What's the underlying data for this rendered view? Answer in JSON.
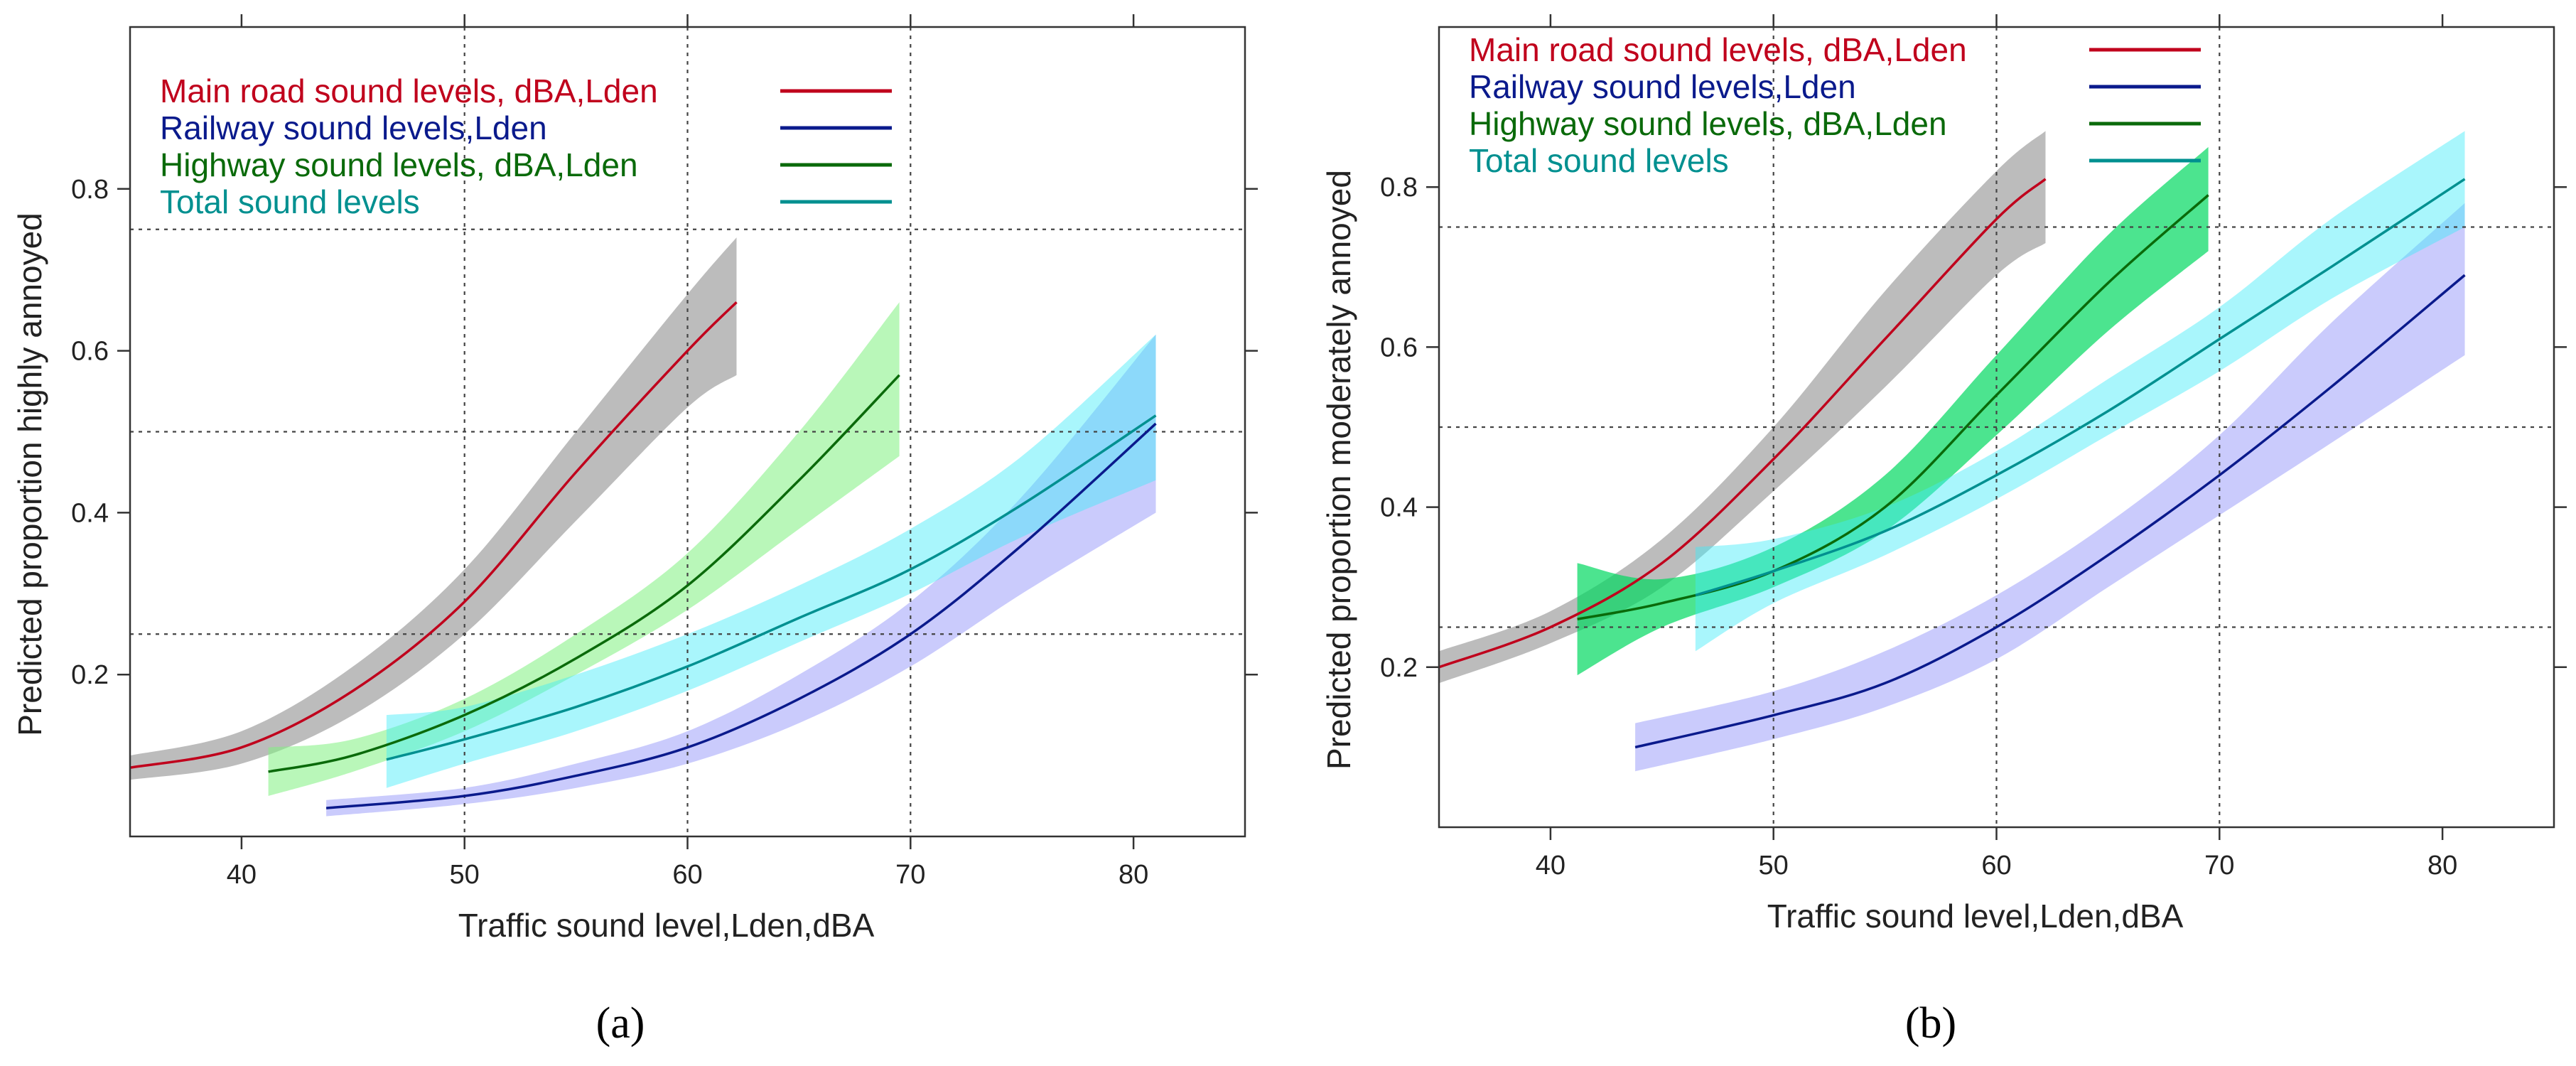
{
  "chart_data": [
    {
      "type": "line",
      "panel_label": "(a)",
      "xlabel": "Traffic sound level,Lden,dBA",
      "ylabel": "Predicted proportion highly annoyed",
      "xlim": [
        35,
        85
      ],
      "ylim": [
        0,
        1
      ],
      "xticks": [
        40,
        50,
        60,
        70,
        80
      ],
      "yticks": [
        0.2,
        0.4,
        0.6,
        0.8
      ],
      "vlines": [
        50,
        60,
        70
      ],
      "hlines": [
        0.25,
        0.5,
        0.75
      ],
      "legend_position": "top-left",
      "series": [
        {
          "name": "Main road sound levels, dBA,Lden",
          "color": "#c0001c",
          "band_color": "#909090",
          "band_opacity": 0.6,
          "x": [
            35,
            40,
            45,
            50,
            55,
            60,
            62.2
          ],
          "y": [
            0.085,
            0.11,
            0.18,
            0.29,
            0.45,
            0.6,
            0.66
          ],
          "lower": [
            0.07,
            0.09,
            0.15,
            0.25,
            0.39,
            0.53,
            0.57
          ],
          "upper": [
            0.1,
            0.13,
            0.21,
            0.33,
            0.5,
            0.67,
            0.74
          ]
        },
        {
          "name": "Railway sound levels,Lden",
          "color": "#0a1a8c",
          "band_color": "#8a8cf8",
          "band_opacity": 0.45,
          "x": [
            43.8,
            50,
            55,
            60,
            65,
            70,
            75,
            81
          ],
          "y": [
            0.035,
            0.05,
            0.075,
            0.11,
            0.17,
            0.25,
            0.36,
            0.51
          ],
          "lower": [
            0.025,
            0.04,
            0.06,
            0.09,
            0.14,
            0.21,
            0.3,
            0.4
          ],
          "upper": [
            0.045,
            0.06,
            0.09,
            0.13,
            0.2,
            0.29,
            0.42,
            0.62
          ]
        },
        {
          "name": "Highway sound levels, dBA,Lden",
          "color": "#0a6a0a",
          "band_color": "#7ff07f",
          "band_opacity": 0.55,
          "x": [
            41.2,
            45,
            50,
            55,
            60,
            65,
            69.5
          ],
          "y": [
            0.08,
            0.1,
            0.15,
            0.22,
            0.31,
            0.44,
            0.57
          ],
          "lower": [
            0.05,
            0.08,
            0.13,
            0.2,
            0.28,
            0.38,
            0.47
          ],
          "upper": [
            0.11,
            0.12,
            0.17,
            0.25,
            0.35,
            0.5,
            0.66
          ]
        },
        {
          "name": "Total sound levels",
          "color": "#009090",
          "band_color": "#40ecf8",
          "band_opacity": 0.45,
          "x": [
            46.5,
            50,
            55,
            60,
            65,
            70,
            75,
            81
          ],
          "y": [
            0.095,
            0.12,
            0.16,
            0.21,
            0.27,
            0.33,
            0.41,
            0.52
          ],
          "lower": [
            0.06,
            0.09,
            0.13,
            0.18,
            0.24,
            0.3,
            0.37,
            0.44
          ],
          "upper": [
            0.15,
            0.16,
            0.2,
            0.25,
            0.31,
            0.38,
            0.47,
            0.62
          ]
        }
      ]
    },
    {
      "type": "line",
      "panel_label": "(b)",
      "xlabel": "Traffic sound level,Lden,dBA",
      "ylabel": "Predicted proportion moderately annoyed",
      "xlim": [
        35,
        85
      ],
      "ylim": [
        0,
        1
      ],
      "xticks": [
        40,
        50,
        60,
        70,
        80
      ],
      "yticks": [
        0.2,
        0.4,
        0.6,
        0.8
      ],
      "vlines": [
        50,
        60,
        70
      ],
      "hlines": [
        0.25,
        0.5,
        0.75
      ],
      "legend_position": "top-left",
      "series": [
        {
          "name": "Main road sound levels, dBA,Lden",
          "color": "#c0001c",
          "band_color": "#909090",
          "band_opacity": 0.6,
          "x": [
            35,
            40,
            45,
            50,
            55,
            60,
            62.2
          ],
          "y": [
            0.2,
            0.25,
            0.33,
            0.46,
            0.61,
            0.76,
            0.81
          ],
          "lower": [
            0.18,
            0.23,
            0.3,
            0.42,
            0.55,
            0.69,
            0.73
          ],
          "upper": [
            0.22,
            0.27,
            0.36,
            0.5,
            0.67,
            0.82,
            0.87
          ]
        },
        {
          "name": "Railway sound levels,Lden",
          "color": "#0a1a8c",
          "band_color": "#8a8cf8",
          "band_opacity": 0.45,
          "x": [
            43.8,
            50,
            55,
            60,
            65,
            70,
            75,
            81
          ],
          "y": [
            0.1,
            0.14,
            0.18,
            0.25,
            0.34,
            0.44,
            0.55,
            0.69
          ],
          "lower": [
            0.07,
            0.11,
            0.15,
            0.21,
            0.3,
            0.39,
            0.48,
            0.59
          ],
          "upper": [
            0.13,
            0.17,
            0.22,
            0.29,
            0.38,
            0.49,
            0.63,
            0.78
          ]
        },
        {
          "name": "Highway sound levels, dBA,Lden",
          "color": "#0a6a0a",
          "band_color": "#00d860",
          "band_opacity": 0.7,
          "x": [
            41.2,
            45,
            50,
            55,
            60,
            65,
            69.5
          ],
          "y": [
            0.26,
            0.28,
            0.32,
            0.4,
            0.54,
            0.68,
            0.79
          ],
          "lower": [
            0.19,
            0.25,
            0.3,
            0.37,
            0.49,
            0.62,
            0.72
          ],
          "upper": [
            0.33,
            0.31,
            0.35,
            0.44,
            0.59,
            0.74,
            0.85
          ]
        },
        {
          "name": "Total sound levels",
          "color": "#009090",
          "band_color": "#40ecf8",
          "band_opacity": 0.45,
          "x": [
            46.5,
            50,
            55,
            60,
            65,
            70,
            75,
            81
          ],
          "y": [
            0.29,
            0.32,
            0.37,
            0.44,
            0.52,
            0.61,
            0.7,
            0.81
          ],
          "lower": [
            0.22,
            0.28,
            0.34,
            0.41,
            0.49,
            0.57,
            0.66,
            0.75
          ],
          "upper": [
            0.35,
            0.36,
            0.4,
            0.47,
            0.56,
            0.65,
            0.76,
            0.87
          ]
        }
      ]
    }
  ]
}
